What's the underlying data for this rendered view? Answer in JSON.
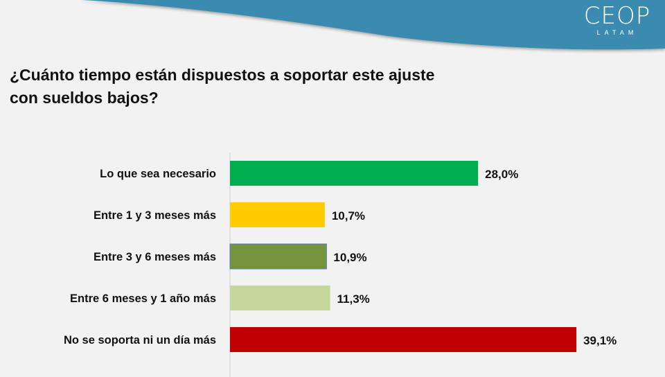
{
  "logo": {
    "main": "CEOP",
    "sub": "LATAM"
  },
  "title_line1": "¿Cuánto tiempo están dispuestos a soportar este ajuste",
  "title_line2": "con sueldos bajos?",
  "colors": {
    "header": "#3a8ab0",
    "background": "#f2f2f2"
  },
  "chart_data": {
    "type": "bar",
    "orientation": "horizontal",
    "categories": [
      "Lo que sea necesario",
      "Entre 1 y 3 meses más",
      "Entre 3 y 6 meses más",
      "Entre 6 meses y 1 año más",
      "No se soporta ni un día más"
    ],
    "values": [
      28.0,
      10.7,
      10.9,
      11.3,
      39.1
    ],
    "value_labels": [
      "28,0%",
      "10,7%",
      "10,9%",
      "11,3%",
      "39,1%"
    ],
    "colors": [
      "#00ae50",
      "#ffcc00",
      "#77933c",
      "#c4d79b",
      "#c00000"
    ],
    "xlim": [
      0,
      40
    ],
    "grid": false
  }
}
